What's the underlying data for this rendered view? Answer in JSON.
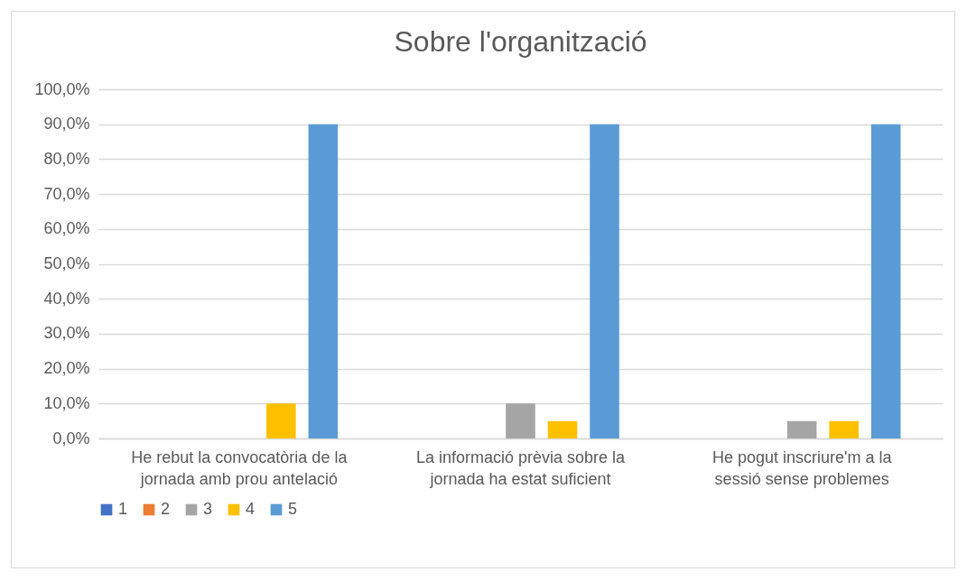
{
  "chart_data": {
    "type": "bar",
    "title": "Sobre l'organització",
    "categories": [
      "He rebut la convocatòria de la jornada amb prou antelació",
      "La informació prèvia sobre la jornada ha estat suficient",
      "He pogut inscriure'm a la sessió sense problemes"
    ],
    "series": [
      {
        "name": "1",
        "color": "#4472c4",
        "values": [
          0,
          0,
          0
        ]
      },
      {
        "name": "2",
        "color": "#ed7d31",
        "values": [
          0,
          0,
          0
        ]
      },
      {
        "name": "3",
        "color": "#a5a5a5",
        "values": [
          0,
          10,
          5
        ]
      },
      {
        "name": "4",
        "color": "#ffc000",
        "values": [
          10,
          5,
          5
        ]
      },
      {
        "name": "5",
        "color": "#5b9bd5",
        "values": [
          90,
          90,
          90
        ]
      }
    ],
    "ylim": [
      0,
      100
    ],
    "yticks": [
      {
        "value": 0,
        "label": "0,0%"
      },
      {
        "value": 10,
        "label": "10,0%"
      },
      {
        "value": 20,
        "label": "20,0%"
      },
      {
        "value": 30,
        "label": "30,0%"
      },
      {
        "value": 40,
        "label": "40,0%"
      },
      {
        "value": 50,
        "label": "50,0%"
      },
      {
        "value": 60,
        "label": "60,0%"
      },
      {
        "value": 70,
        "label": "70,0%"
      },
      {
        "value": 80,
        "label": "80,0%"
      },
      {
        "value": 90,
        "label": "90,0%"
      },
      {
        "value": 100,
        "label": "100,0%"
      }
    ],
    "grid": "y",
    "legend": "bottom"
  }
}
